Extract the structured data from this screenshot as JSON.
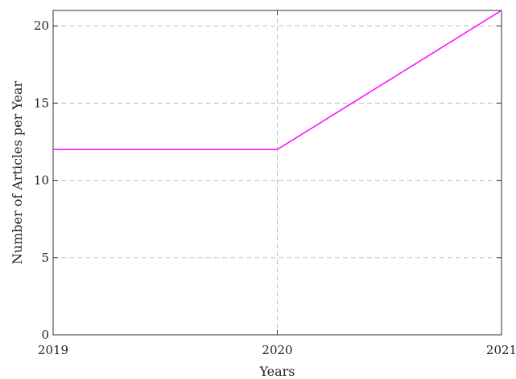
{
  "chart_data": {
    "type": "line",
    "title": "",
    "xlabel": "Years",
    "ylabel": "Number of Articles per Year",
    "x": [
      2019,
      2020,
      2021
    ],
    "xticks": [
      "2019",
      "2020",
      "2021"
    ],
    "xlim": [
      2019,
      2021
    ],
    "ylim": [
      0,
      21
    ],
    "yticks": [
      0,
      5,
      10,
      15,
      20
    ],
    "grid": true,
    "legend": "none",
    "series": [
      {
        "values": [
          12,
          12,
          21
        ],
        "color": "#ff00ff"
      }
    ]
  }
}
